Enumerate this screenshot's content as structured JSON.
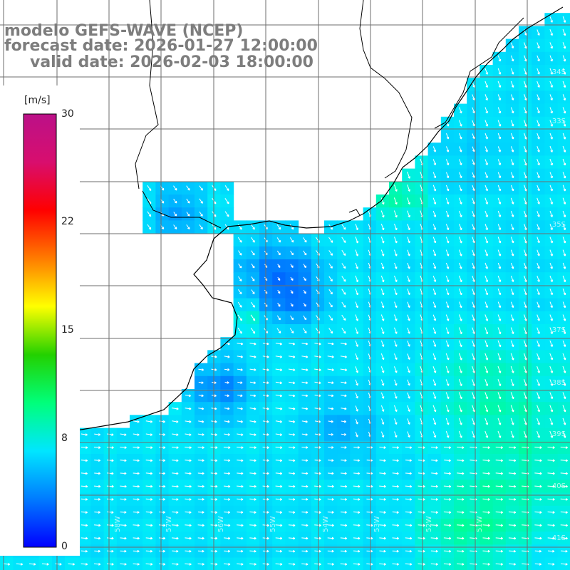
{
  "title": {
    "line1": "modelo GEFS-WAVE (NCEP)",
    "line2": "forecast date: 2026-01-27 12:00:00",
    "line3": "valid date: 2026-02-03 18:00:00"
  },
  "colorbar": {
    "units": "[m/s]",
    "min": 0,
    "max": 30,
    "tick_labels": [
      "30",
      "22",
      "15",
      "8",
      "0"
    ],
    "tick_values": [
      30,
      22,
      15,
      8,
      0
    ],
    "colors": [
      "#0000ff",
      "#007bff",
      "#00e6ff",
      "#00ff7b",
      "#23d100",
      "#ffff00",
      "#ff7b00",
      "#ff0000",
      "#d80e6e",
      "#bb1188"
    ]
  },
  "axes": {
    "lat_labels": [
      "36S",
      "37S",
      "38S",
      "39S",
      "40S",
      "41S",
      "34S",
      "33S",
      "35S"
    ],
    "lon_labels": [
      "60W",
      "59W",
      "58W",
      "57W",
      "56W",
      "55W",
      "54W",
      "53W",
      "52W",
      "51W"
    ]
  },
  "map": {
    "grid": true,
    "field": "wind speed",
    "palette_land": "#ffffff",
    "coast_color": "#000000",
    "grid_color": "#6e6e6e"
  }
}
